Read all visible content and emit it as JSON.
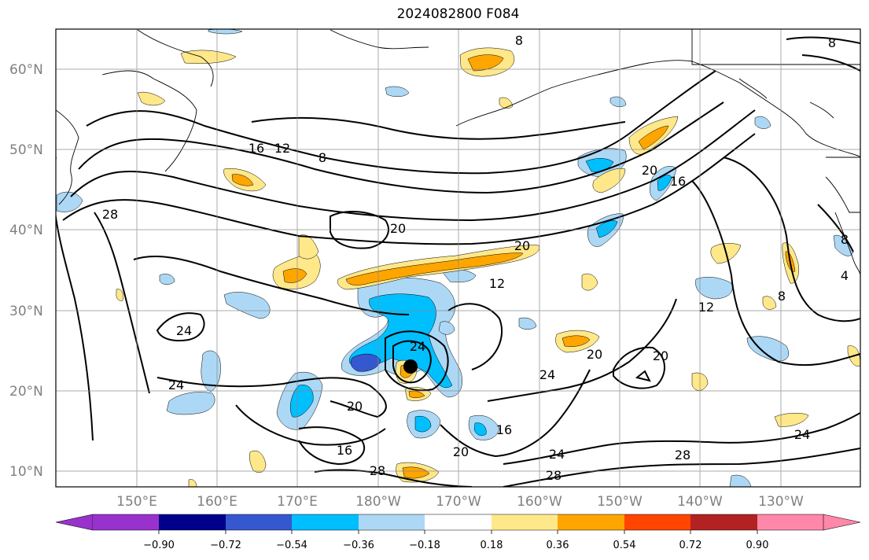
{
  "title": "2024082800 F084",
  "map": {
    "lon_labels": [
      "150°E",
      "160°E",
      "170°E",
      "180°W",
      "170°W",
      "160°W",
      "150°W",
      "140°W",
      "130°W"
    ],
    "lat_labels": [
      "60°N",
      "50°N",
      "40°N",
      "30°N",
      "20°N",
      "10°N"
    ],
    "contour_labels": [
      "8",
      "16",
      "12",
      "8",
      "20",
      "16",
      "28",
      "20",
      "20",
      "12",
      "24",
      "24",
      "24",
      "20",
      "16",
      "20",
      "28",
      "24",
      "28",
      "16",
      "20",
      "20",
      "28",
      "24",
      "8",
      "12",
      "8",
      "4",
      "24",
      "8"
    ]
  },
  "colorbar": {
    "tick_labels": [
      "−0.90",
      "−0.72",
      "−0.54",
      "−0.36",
      "−0.18",
      "0.18",
      "0.36",
      "0.54",
      "0.72",
      "0.90"
    ],
    "colors": [
      "#9932cc",
      "#00008b",
      "#3558d0",
      "#00bfff",
      "#add8f5",
      "#ffffff",
      "#ffe88a",
      "#ffa500",
      "#ff4500",
      "#b22222",
      "#ff88aa"
    ]
  },
  "colors": {
    "neg_light": "#add8f5",
    "neg_mid": "#00bfff",
    "neg_dark": "#3558d0",
    "pos_light": "#ffe88a",
    "pos_mid": "#ffa500"
  }
}
